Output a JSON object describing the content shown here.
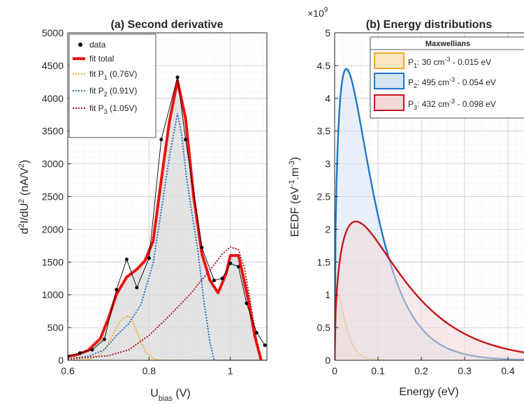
{
  "chart_data": [
    {
      "id": "a",
      "type": "line",
      "title": "(a) Second derivative",
      "xlabel": "U",
      "xlabel_sub": "bias",
      "xlabel_unit": " (V)",
      "ylabel": "d²I/dU² (nA/V²)",
      "xlim": [
        0.6,
        1.09
      ],
      "ylim": [
        0,
        5000
      ],
      "xticks": [
        0.6,
        0.8,
        1
      ],
      "xtick_labels": [
        "0.6",
        "0.8",
        "1"
      ],
      "yticks": [
        0,
        500,
        1000,
        1500,
        2000,
        2500,
        3000,
        3500,
        4000,
        4500,
        5000
      ],
      "ytick_labels": [
        "0",
        "500",
        "1000",
        "1500",
        "2000",
        "2500",
        "3000",
        "3500",
        "4000",
        "4500",
        "5000"
      ],
      "grid": true,
      "legend_position": "top-left",
      "series": [
        {
          "name": "data",
          "kind": "markers",
          "color": "#000000",
          "x": [
            0.6,
            0.63,
            0.66,
            0.69,
            0.72,
            0.745,
            0.77,
            0.8,
            0.83,
            0.87,
            0.89,
            0.93,
            0.96,
            0.98,
            1.0,
            1.02,
            1.04,
            1.065,
            1.085
          ],
          "y": [
            60,
            110,
            160,
            320,
            1080,
            1540,
            1110,
            1560,
            3370,
            4320,
            3370,
            1720,
            1220,
            1250,
            1480,
            1430,
            870,
            420,
            230
          ]
        },
        {
          "name": "fit total",
          "kind": "line",
          "color": "#ee1111",
          "x": [
            0.6,
            0.62,
            0.65,
            0.68,
            0.7,
            0.72,
            0.745,
            0.77,
            0.79,
            0.81,
            0.83,
            0.85,
            0.87,
            0.89,
            0.91,
            0.93,
            0.95,
            0.97,
            0.99,
            1.0,
            1.02,
            1.03,
            1.045,
            1.06,
            1.075
          ],
          "y": [
            60,
            80,
            150,
            330,
            640,
            1010,
            1270,
            1390,
            1520,
            1820,
            2750,
            3640,
            4270,
            3690,
            2490,
            1630,
            1220,
            1030,
            1330,
            1600,
            1600,
            1330,
            900,
            380,
            20
          ]
        },
        {
          "name": "fit P₁ (0.76V)",
          "name_main": "fit P",
          "name_sub": "1",
          "name_tail": " (0.76V)",
          "kind": "dotted",
          "color": "#f0b020",
          "x": [
            0.6,
            0.65,
            0.68,
            0.7,
            0.72,
            0.735,
            0.75,
            0.76,
            0.775,
            0.79,
            0.81,
            0.83,
            0.86,
            0.9
          ],
          "y": [
            0,
            10,
            80,
            260,
            500,
            640,
            680,
            590,
            360,
            150,
            20,
            0,
            0,
            0
          ]
        },
        {
          "name": "fit P₂ (0.91V)",
          "name_main": "fit P",
          "name_sub": "2",
          "name_tail": " (0.91V)",
          "kind": "dotted",
          "color": "#1f6fc0",
          "x": [
            0.6,
            0.65,
            0.69,
            0.72,
            0.75,
            0.78,
            0.81,
            0.83,
            0.85,
            0.87,
            0.88,
            0.89,
            0.9,
            0.92,
            0.935,
            0.95,
            0.96,
            1.09
          ],
          "y": [
            20,
            60,
            160,
            380,
            560,
            850,
            1480,
            2280,
            3100,
            3770,
            3450,
            2900,
            2460,
            1680,
            900,
            270,
            0,
            0
          ]
        },
        {
          "name": "fit P₃ (1.05V)",
          "name_main": "fit P",
          "name_sub": "3",
          "name_tail": " (1.05V)",
          "kind": "dotted",
          "color": "#a6192e",
          "x": [
            0.6,
            0.7,
            0.75,
            0.8,
            0.85,
            0.9,
            0.95,
            0.98,
            1.0,
            1.02,
            1.035,
            1.05,
            1.065,
            1.075
          ],
          "y": [
            20,
            70,
            160,
            380,
            680,
            1000,
            1380,
            1620,
            1730,
            1690,
            1400,
            870,
            300,
            0
          ]
        }
      ],
      "fill": {
        "series": "fit total",
        "color": "#d9d9d9",
        "opacity": 0.75
      }
    },
    {
      "id": "b",
      "type": "area",
      "title": "(b) Energy distributions",
      "xlabel": "Energy (eV)",
      "ylabel": "EEDF (eV⁻¹.m⁻³)",
      "ylabel_main": "EEDF (eV",
      "ylabel_mid": ".m",
      "ylabel_end": ")",
      "ylabel_sup": "-1",
      "ylabel_sup2": "-3",
      "multiplier": "×10",
      "multiplier_exp": "9",
      "xlim": [
        0,
        0.5
      ],
      "ylim": [
        0,
        5
      ],
      "xticks": [
        0,
        0.1,
        0.2,
        0.3,
        0.4
      ],
      "xtick_labels": [
        "0",
        "0.1",
        "0.2",
        "0.3",
        "0.4"
      ],
      "yticks": [
        0,
        0.5,
        1,
        1.5,
        2,
        2.5,
        3,
        3.5,
        4,
        4.5,
        5
      ],
      "ytick_labels": [
        "0",
        "0.5",
        "1",
        "1.5",
        "2",
        "2.5",
        "3",
        "3.5",
        "4",
        "4.5",
        "5"
      ],
      "grid": true,
      "legend_title": "Maxwellians",
      "legend_position": "top-right",
      "series": [
        {
          "name": "P₁: 30 cm⁻³ - 0.015 eV",
          "label_main": "P",
          "label_sub": "1",
          "label_a": ": 30 cm",
          "label_sup": "-3",
          "label_b": " - 0.015 eV",
          "color": "#f2a81d",
          "fill": "#fbe8c0",
          "peak": 1.0,
          "kT": 0.015
        },
        {
          "name": "P₂: 495 cm⁻³ - 0.054 eV",
          "label_main": "P",
          "label_sub": "2",
          "label_a": ": 495 cm",
          "label_sup": "-3",
          "label_b": " - 0.054 eV",
          "color": "#1f77c4",
          "fill": "#d6e6f4",
          "peak": 4.45,
          "kT": 0.054
        },
        {
          "name": "P₃: 432 cm⁻³ - 0.098 eV",
          "label_main": "P",
          "label_sub": "3",
          "label_a": ": 432 cm",
          "label_sup": "-3",
          "label_b": " - 0.098 eV",
          "color": "#c4161c",
          "fill": "#f3d8d8",
          "peak": 2.12,
          "kT": 0.098
        }
      ]
    }
  ]
}
